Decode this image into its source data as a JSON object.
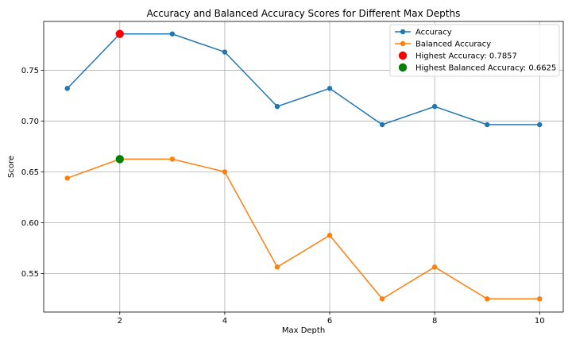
{
  "chart_data": {
    "type": "line",
    "title": "Accuracy and Balanced Accuracy Scores for Different Max Depths",
    "xlabel": "Max Depth",
    "ylabel": "Score",
    "x": [
      1,
      2,
      3,
      4,
      5,
      6,
      7,
      8,
      9,
      10
    ],
    "xlim": [
      0.55,
      10.45
    ],
    "ylim": [
      0.512,
      0.798
    ],
    "xticks": [
      2,
      4,
      6,
      8,
      10
    ],
    "xtick_labels": [
      "2",
      "4",
      "6",
      "8",
      "10"
    ],
    "yticks": [
      0.55,
      0.6,
      0.65,
      0.7,
      0.75
    ],
    "ytick_labels": [
      "0.55",
      "0.60",
      "0.65",
      "0.70",
      "0.75"
    ],
    "grid": true,
    "legend_position": "top-right",
    "series": [
      {
        "name": "Accuracy",
        "color": "#1f77b4",
        "values": [
          0.7321,
          0.7857,
          0.7857,
          0.7679,
          0.7143,
          0.7321,
          0.6964,
          0.7143,
          0.6964,
          0.6964
        ]
      },
      {
        "name": "Balanced Accuracy",
        "color": "#ff7f0e",
        "values": [
          0.6438,
          0.6625,
          0.6625,
          0.65,
          0.5563,
          0.5875,
          0.525,
          0.5563,
          0.525,
          0.525
        ]
      }
    ],
    "highlights": [
      {
        "name": "Highest Accuracy: 0.7857",
        "x": 2,
        "y": 0.7857,
        "color": "#ff0000"
      },
      {
        "name": "Highest Balanced Accuracy: 0.6625",
        "x": 2,
        "y": 0.6625,
        "color": "#008000"
      }
    ]
  }
}
